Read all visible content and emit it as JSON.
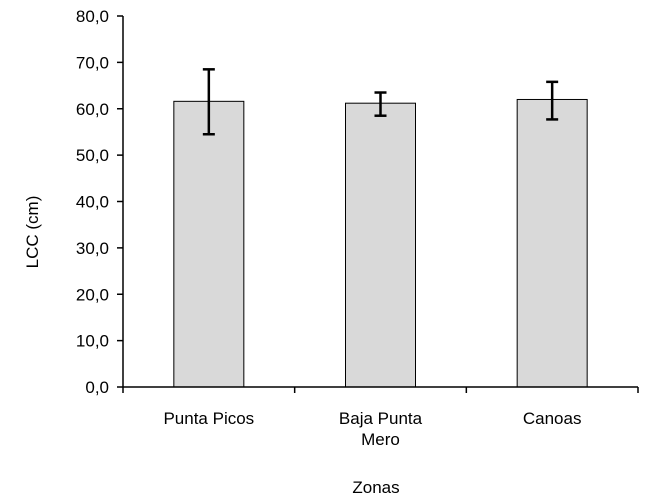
{
  "chart_data": {
    "type": "bar",
    "title": "",
    "xlabel": "Zonas",
    "ylabel": "LCC (cm)",
    "categories": [
      [
        "Punta Picos"
      ],
      [
        "Baja Punta",
        "Mero"
      ],
      [
        "Canoas"
      ]
    ],
    "values": [
      61.6,
      61.2,
      62.0
    ],
    "error_low": [
      54.5,
      58.5,
      57.7
    ],
    "error_high": [
      68.5,
      63.5,
      65.8
    ],
    "ylim": [
      0,
      80
    ],
    "y_ticks": [
      "0,0",
      "10,0",
      "20,0",
      "30,0",
      "40,0",
      "50,0",
      "60,0",
      "70,0",
      "80,0"
    ],
    "y_tick_values": [
      0,
      10,
      20,
      30,
      40,
      50,
      60,
      70,
      80
    ],
    "grid": false,
    "legend": "none",
    "bar_color": "#d9d9d9",
    "bar_edge_color": "#000000",
    "error_bar_color": "#000000"
  }
}
